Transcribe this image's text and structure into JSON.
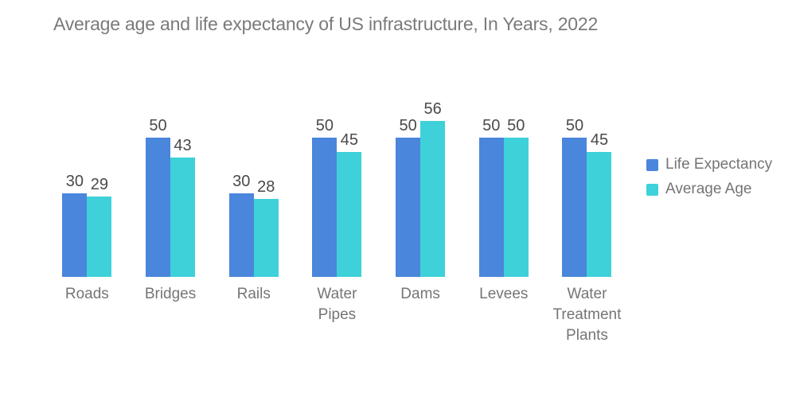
{
  "chart_data": {
    "type": "bar",
    "title": "Average age and life expectancy of US infrastructure, In Years, 2022",
    "categories": [
      {
        "label": "Roads",
        "lines": [
          "Roads"
        ]
      },
      {
        "label": "Bridges",
        "lines": [
          "Bridges"
        ]
      },
      {
        "label": "Rails",
        "lines": [
          "Rails"
        ]
      },
      {
        "label": "Water Pipes",
        "lines": [
          "Water",
          "Pipes"
        ]
      },
      {
        "label": "Dams",
        "lines": [
          "Dams"
        ]
      },
      {
        "label": "Levees",
        "lines": [
          "Levees"
        ]
      },
      {
        "label": "Water Treatment Plants",
        "lines": [
          "Water",
          "Treatment",
          "Plants"
        ]
      }
    ],
    "series": [
      {
        "name": "Life Expectancy",
        "color": "#4A86DB",
        "values": [
          30,
          50,
          30,
          50,
          50,
          50,
          50
        ]
      },
      {
        "name": "Average Age",
        "color": "#3ED1D9",
        "values": [
          29,
          43,
          28,
          45,
          56,
          50,
          45
        ]
      }
    ],
    "value_labels_shown": true,
    "axes_visible": false,
    "grid": false,
    "legend_position": "right",
    "ylim": [
      0,
      60
    ],
    "colors": {
      "title_text": "#7a7a7a",
      "value_text": "#4a4a4a",
      "category_text": "#757575",
      "background": "#ffffff"
    }
  }
}
